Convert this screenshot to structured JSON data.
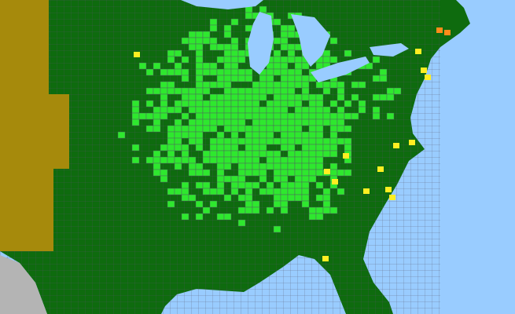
{
  "map": {
    "colors": {
      "water": "#99ccff",
      "land_dark_green": "#0e6b0e",
      "land_bright_green": "#2ee82e",
      "west_brown": "#a68a0c",
      "mexico_gray": "#b4b4b4",
      "highlight_yellow": "#ffee22",
      "highlight_orange": "#ff8c1a",
      "county_border": "#555566"
    }
  }
}
